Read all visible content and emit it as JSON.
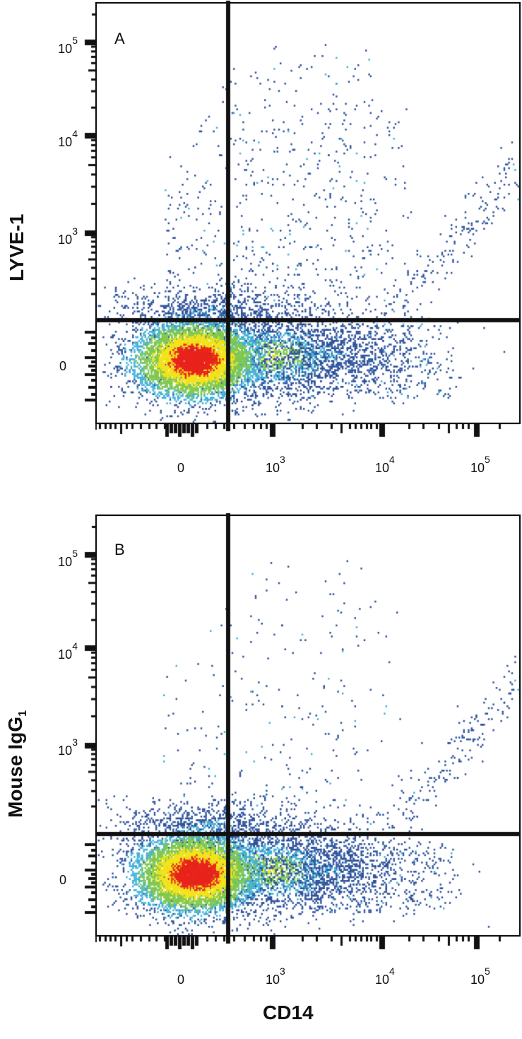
{
  "figure": {
    "x_axis_label": "CD14",
    "colors": {
      "low": "#2a4f9a",
      "mid_low": "#3fb0d8",
      "mid": "#7ec850",
      "mid_high": "#f3e31c",
      "high": "#e8231c",
      "axis": "#111111"
    }
  },
  "panels": [
    {
      "letter": "A",
      "y_axis_label": "LYVE-1",
      "y_axis_subscript": "",
      "y_ticks": [
        {
          "base": "10",
          "exp": "5"
        },
        {
          "base": "10",
          "exp": "4"
        },
        {
          "base": "10",
          "exp": "3"
        },
        {
          "base": "0",
          "exp": ""
        }
      ],
      "x_ticks": [
        {
          "base": "0",
          "exp": ""
        },
        {
          "base": "10",
          "exp": "3"
        },
        {
          "base": "10",
          "exp": "4"
        },
        {
          "base": "10",
          "exp": "5"
        }
      ]
    },
    {
      "letter": "B",
      "y_axis_label": "Mouse IgG",
      "y_axis_subscript": "1",
      "y_ticks": [
        {
          "base": "10",
          "exp": "5"
        },
        {
          "base": "10",
          "exp": "4"
        },
        {
          "base": "10",
          "exp": "3"
        },
        {
          "base": "0",
          "exp": ""
        }
      ],
      "x_ticks": [
        {
          "base": "0",
          "exp": ""
        },
        {
          "base": "10",
          "exp": "3"
        },
        {
          "base": "10",
          "exp": "4"
        },
        {
          "base": "10",
          "exp": "5"
        }
      ]
    }
  ],
  "chart_data": [
    {
      "type": "scatter",
      "subtype": "flow-cytometry pseudocolor density dot plot",
      "title": "A",
      "xlabel": "CD14",
      "ylabel": "LYVE-1",
      "x_scale": "biexponential",
      "y_scale": "biexponential",
      "x_ticks": [
        "0",
        "10^3",
        "10^4",
        "10^5"
      ],
      "y_ticks": [
        "0",
        "10^3",
        "10^4",
        "10^5"
      ],
      "quadrant_gate": {
        "x": 350,
        "y": 200
      },
      "populations": [
        {
          "name": "main negative cluster",
          "center_x": "~0",
          "center_y": "~0",
          "density": "high (red core)",
          "quadrant": "lower-left"
        },
        {
          "name": "CD14+ LYVE-1- shoulder",
          "center_x": "~10^3",
          "center_y": "~0",
          "density": "medium",
          "quadrant": "lower-right"
        },
        {
          "name": "CD14+ LYVE-1+ scatter",
          "center_x": "10^3-10^4",
          "center_y": "10^3-10^4",
          "density": "low-medium",
          "quadrant": "upper-right"
        },
        {
          "name": "high CD14 diagonal tail",
          "center_x": "~10^5",
          "center_y": "~10^3",
          "density": "low",
          "quadrant": "upper-right"
        }
      ],
      "grid": false,
      "legend": null
    },
    {
      "type": "scatter",
      "subtype": "flow-cytometry pseudocolor density dot plot (isotype control)",
      "title": "B",
      "xlabel": "CD14",
      "ylabel": "Mouse IgG1",
      "x_scale": "biexponential",
      "y_scale": "biexponential",
      "x_ticks": [
        "0",
        "10^3",
        "10^4",
        "10^5"
      ],
      "y_ticks": [
        "0",
        "10^3",
        "10^4",
        "10^5"
      ],
      "quadrant_gate": {
        "x": 350,
        "y": 200
      },
      "populations": [
        {
          "name": "main negative cluster",
          "center_x": "~0",
          "center_y": "~0",
          "density": "high (red core)",
          "quadrant": "lower-left"
        },
        {
          "name": "CD14+ isotype-negative shoulder",
          "center_x": "~10^3",
          "center_y": "~0",
          "density": "medium",
          "quadrant": "lower-right"
        },
        {
          "name": "sparse upper-right scatter",
          "center_x": "10^3-10^4",
          "center_y": "~10^3",
          "density": "low",
          "quadrant": "upper-right"
        },
        {
          "name": "high CD14 tail",
          "center_x": "~10^5",
          "center_y": "~10^3",
          "density": "low",
          "quadrant": "upper-right"
        }
      ],
      "grid": false,
      "legend": null
    }
  ]
}
